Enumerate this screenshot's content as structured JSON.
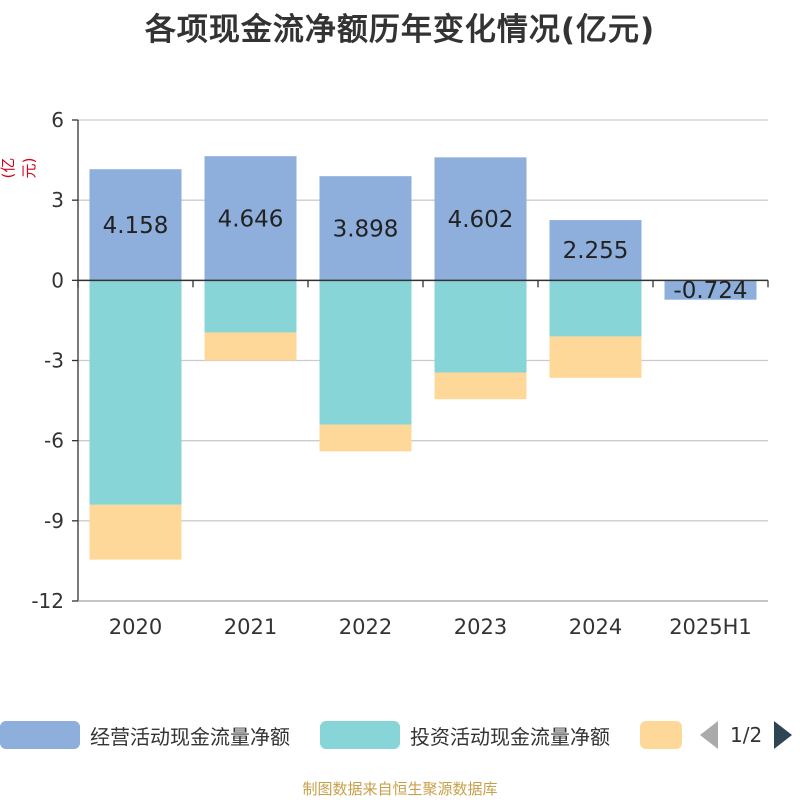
{
  "title": "各项现金流净额历年变化情况(亿元)",
  "unit_label": "(亿元)",
  "source_text": "制图数据来自恒生聚源数据库",
  "legend": {
    "items": [
      {
        "label": "经营活动现金流量净额",
        "color": "#8eaedb"
      },
      {
        "label": "投资活动现金流量净额",
        "color": "#88d5d8"
      },
      {
        "label": "",
        "color": "#fdd898"
      }
    ],
    "pager": "1/2"
  },
  "chart_data": {
    "type": "bar",
    "stacked": true,
    "categories": [
      "2020",
      "2021",
      "2022",
      "2023",
      "2024",
      "2025H1"
    ],
    "ylim": [
      -12,
      6
    ],
    "yticks": [
      6,
      3,
      0,
      -3,
      -6,
      -9,
      -12
    ],
    "grid": true,
    "legend_position": "bottom",
    "series": [
      {
        "name": "经营活动现金流量净额",
        "color": "#8eaedb",
        "values": [
          4.158,
          4.646,
          3.898,
          4.602,
          2.255,
          -0.724
        ],
        "labels": [
          "4.158",
          "4.646",
          "3.898",
          "4.602",
          "2.255",
          "-0.724"
        ]
      },
      {
        "name": "投资活动现金流量净额",
        "color": "#88d5d8",
        "values": [
          -8.4,
          -1.95,
          -5.4,
          -3.45,
          -2.1,
          0
        ]
      },
      {
        "name": "",
        "color": "#fdd898",
        "values": [
          -2.05,
          -1.05,
          -1.0,
          -1.0,
          -1.55,
          0
        ]
      }
    ]
  }
}
